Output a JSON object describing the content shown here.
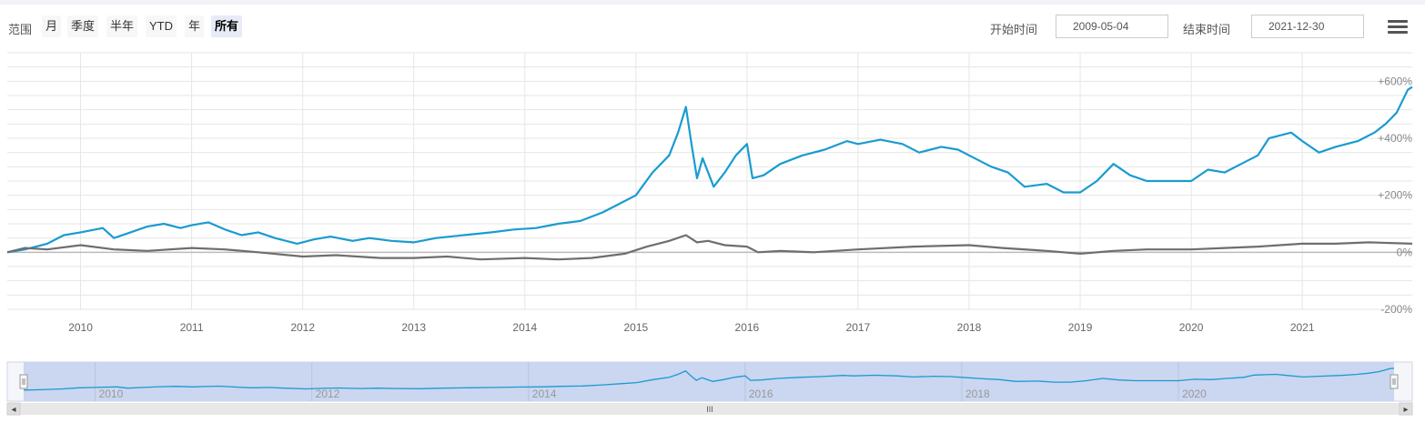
{
  "toolbar": {
    "range_label": "范围",
    "range_buttons": [
      "月",
      "季度",
      "半年",
      "YTD",
      "年",
      "所有"
    ],
    "active_range": "所有",
    "start_label": "开始时间",
    "start_value": "2009-05-04",
    "end_label": "结束时间",
    "end_value": "2021-12-30",
    "menu_icon": "hamburger-menu-icon"
  },
  "colors": {
    "series_1": "#1a9bd0",
    "series_2": "#6e6e6e",
    "navigator_fill": "#c7d3ee",
    "grid": "#e6e6e6"
  },
  "chart_data": {
    "type": "line",
    "title": "",
    "xlabel": "",
    "ylabel": "",
    "x_ticks": [
      "2010",
      "2011",
      "2012",
      "2013",
      "2014",
      "2015",
      "2016",
      "2017",
      "2018",
      "2019",
      "2020",
      "2021"
    ],
    "y_ticks": [
      "+600%",
      "+400%",
      "+200%",
      "0%",
      "-200%"
    ],
    "ylim": [
      -200,
      700
    ],
    "xlim": [
      2009.34,
      2021.99
    ],
    "grid": true,
    "legend": "none",
    "navigator_ticks": [
      "2010",
      "2012",
      "2014",
      "2016",
      "2018",
      "2020"
    ],
    "scrollbar_grip": "III",
    "series": [
      {
        "x": [
          2009.34,
          2009.5,
          2009.7,
          2009.85,
          2010.0,
          2010.2,
          2010.3,
          2010.45,
          2010.6,
          2010.75,
          2010.9,
          2011.0,
          2011.15,
          2011.3,
          2011.45,
          2011.6,
          2011.75,
          2011.95,
          2012.1,
          2012.25,
          2012.45,
          2012.6,
          2012.8,
          2013.0,
          2013.2,
          2013.45,
          2013.7,
          2013.9,
          2014.1,
          2014.3,
          2014.5,
          2014.7,
          2014.85,
          2015.0,
          2015.15,
          2015.3,
          2015.38,
          2015.45,
          2015.5,
          2015.55,
          2015.6,
          2015.7,
          2015.8,
          2015.9,
          2016.0,
          2016.05,
          2016.15,
          2016.3,
          2016.5,
          2016.7,
          2016.9,
          2017.0,
          2017.2,
          2017.4,
          2017.55,
          2017.75,
          2017.9,
          2018.0,
          2018.2,
          2018.35,
          2018.5,
          2018.7,
          2018.85,
          2019.0,
          2019.15,
          2019.3,
          2019.45,
          2019.6,
          2019.8,
          2020.0,
          2020.15,
          2020.3,
          2020.45,
          2020.6,
          2020.7,
          2020.9,
          2021.0,
          2021.15,
          2021.3,
          2021.5,
          2021.65,
          2021.75,
          2021.85,
          2021.95,
          2021.99
        ],
        "values": [
          0,
          10,
          30,
          60,
          70,
          85,
          50,
          70,
          90,
          100,
          85,
          95,
          105,
          80,
          60,
          70,
          50,
          30,
          45,
          55,
          40,
          50,
          40,
          35,
          50,
          60,
          70,
          80,
          85,
          100,
          110,
          140,
          170,
          200,
          280,
          340,
          420,
          510,
          380,
          260,
          330,
          230,
          280,
          340,
          380,
          260,
          270,
          310,
          340,
          360,
          390,
          380,
          395,
          380,
          350,
          370,
          360,
          340,
          300,
          280,
          230,
          240,
          210,
          210,
          250,
          310,
          270,
          250,
          250,
          250,
          290,
          280,
          310,
          340,
          400,
          420,
          390,
          350,
          370,
          390,
          420,
          450,
          490,
          570,
          580
        ]
      },
      {
        "x": [
          2009.34,
          2009.5,
          2009.7,
          2010.0,
          2010.3,
          2010.6,
          2011.0,
          2011.3,
          2011.6,
          2012.0,
          2012.3,
          2012.7,
          2013.0,
          2013.3,
          2013.6,
          2014.0,
          2014.3,
          2014.6,
          2014.9,
          2015.1,
          2015.3,
          2015.45,
          2015.55,
          2015.65,
          2015.8,
          2016.0,
          2016.1,
          2016.3,
          2016.6,
          2017.0,
          2017.5,
          2018.0,
          2018.3,
          2018.7,
          2019.0,
          2019.3,
          2019.6,
          2020.0,
          2020.3,
          2020.6,
          2021.0,
          2021.3,
          2021.6,
          2021.99
        ],
        "values": [
          0,
          15,
          10,
          25,
          10,
          5,
          15,
          10,
          0,
          -15,
          -10,
          -20,
          -20,
          -15,
          -25,
          -20,
          -25,
          -20,
          -5,
          20,
          40,
          60,
          35,
          40,
          25,
          20,
          0,
          5,
          0,
          10,
          20,
          25,
          15,
          5,
          -5,
          5,
          10,
          10,
          15,
          20,
          30,
          30,
          35,
          30
        ]
      }
    ]
  }
}
